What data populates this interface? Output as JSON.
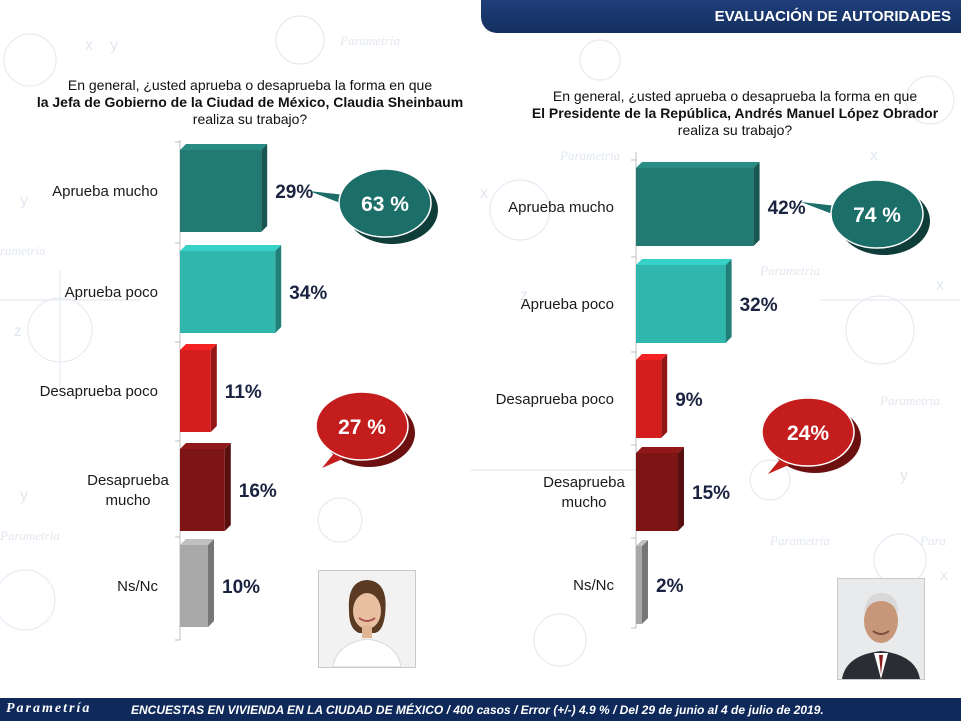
{
  "header": {
    "title": "EVALUACIÓN DE AUTORIDADES"
  },
  "watermark": "Parametría",
  "footer": {
    "logo": "Parametría",
    "text": "ENCUESTAS EN VIVIENDA EN LA CIUDAD DE MÉXICO / 400 casos / Error (+/-) 4.9 % / Del 29 de junio  al 4 de julio de 2019."
  },
  "colors": {
    "aprueba_mucho": "#237a73",
    "aprueba_poco": "#2fb6ad",
    "desaprueba_poco": "#d41e1e",
    "desaprueba_mucho": "#7d1515",
    "nsnc": "#a8a8a8",
    "bubble_approve": "#1c6e69",
    "bubble_disapprove": "#c41d1d",
    "header": "#1f3d7a"
  },
  "chart_data": [
    {
      "type": "bar",
      "question_line1": "En general, ¿usted aprueba o desaprueba la forma en que",
      "question_line2": "la Jefa de Gobierno de la Ciudad de México, Claudia Sheinbaum",
      "question_line3": "realiza su trabajo?",
      "categories": [
        "Aprueba mucho",
        "Aprueba poco",
        "Desaprueba poco",
        "Desaprueba|mucho",
        "Ns/Nc"
      ],
      "values": [
        29,
        34,
        11,
        16,
        10
      ],
      "value_labels": [
        "29%",
        "34%",
        "11%",
        "16%",
        "10%"
      ],
      "approve_total": "63 %",
      "disapprove_total": "27 %",
      "photo": "Claudia Sheinbaum"
    },
    {
      "type": "bar",
      "question_line1": "En general, ¿usted aprueba o desaprueba la forma en que",
      "question_line2": "El Presidente de la República, Andrés Manuel López Obrador",
      "question_line3": "realiza su trabajo?",
      "categories": [
        "Aprueba mucho",
        "Aprueba poco",
        "Desaprueba poco",
        "Desaprueba|mucho",
        "Ns/Nc"
      ],
      "values": [
        42,
        32,
        9,
        15,
        2
      ],
      "value_labels": [
        "42%",
        "32%",
        "9%",
        "15%",
        "2%"
      ],
      "approve_total": "74 %",
      "disapprove_total": "24%",
      "photo": "Andrés Manuel López Obrador"
    }
  ]
}
